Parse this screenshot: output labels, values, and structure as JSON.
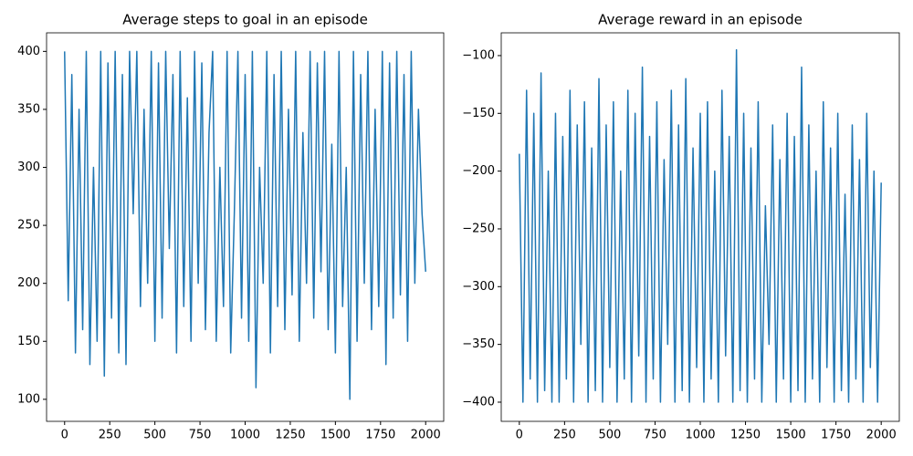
{
  "chart_data": [
    {
      "type": "line",
      "title": "Average steps to goal in an episode",
      "x": [
        0,
        20,
        40,
        60,
        80,
        100,
        120,
        140,
        160,
        180,
        200,
        220,
        240,
        260,
        280,
        300,
        320,
        340,
        360,
        380,
        400,
        420,
        440,
        460,
        480,
        500,
        520,
        540,
        560,
        580,
        600,
        620,
        640,
        660,
        680,
        700,
        720,
        740,
        760,
        780,
        800,
        820,
        840,
        860,
        880,
        900,
        920,
        940,
        960,
        980,
        1000,
        1020,
        1040,
        1060,
        1080,
        1100,
        1120,
        1140,
        1160,
        1180,
        1200,
        1220,
        1240,
        1260,
        1280,
        1300,
        1320,
        1340,
        1360,
        1380,
        1400,
        1420,
        1440,
        1460,
        1480,
        1500,
        1520,
        1540,
        1560,
        1580,
        1600,
        1620,
        1640,
        1660,
        1680,
        1700,
        1720,
        1740,
        1760,
        1780,
        1800,
        1820,
        1840,
        1860,
        1880,
        1900,
        1920,
        1940,
        1960,
        1980,
        2000
      ],
      "series": [
        {
          "color": "#1f77b4",
          "values": [
            400,
            185,
            380,
            140,
            350,
            160,
            400,
            130,
            300,
            150,
            400,
            120,
            390,
            170,
            400,
            140,
            380,
            130,
            400,
            260,
            400,
            180,
            350,
            200,
            400,
            150,
            390,
            170,
            400,
            230,
            380,
            140,
            400,
            180,
            360,
            150,
            400,
            200,
            390,
            160,
            330,
            400,
            150,
            300,
            180,
            400,
            140,
            260,
            400,
            170,
            380,
            150,
            400,
            110,
            300,
            200,
            400,
            140,
            380,
            180,
            400,
            160,
            350,
            190,
            400,
            150,
            330,
            200,
            400,
            170,
            390,
            210,
            400,
            160,
            320,
            140,
            400,
            180,
            300,
            100,
            400,
            150,
            380,
            200,
            400,
            160,
            350,
            180,
            400,
            130,
            390,
            170,
            400,
            190,
            380,
            150,
            400,
            200,
            350,
            260,
            210
          ]
        }
      ],
      "xlim": [
        -100,
        2100
      ],
      "ylim": [
        81,
        416
      ],
      "xticks": [
        0,
        250,
        500,
        750,
        1000,
        1250,
        1500,
        1750,
        2000
      ],
      "yticks": [
        100,
        150,
        200,
        250,
        300,
        350,
        400
      ]
    },
    {
      "type": "line",
      "title": "Average reward in an episode",
      "x": [
        0,
        20,
        40,
        60,
        80,
        100,
        120,
        140,
        160,
        180,
        200,
        220,
        240,
        260,
        280,
        300,
        320,
        340,
        360,
        380,
        400,
        420,
        440,
        460,
        480,
        500,
        520,
        540,
        560,
        580,
        600,
        620,
        640,
        660,
        680,
        700,
        720,
        740,
        760,
        780,
        800,
        820,
        840,
        860,
        880,
        900,
        920,
        940,
        960,
        980,
        1000,
        1020,
        1040,
        1060,
        1080,
        1100,
        1120,
        1140,
        1160,
        1180,
        1200,
        1220,
        1240,
        1260,
        1280,
        1300,
        1320,
        1340,
        1360,
        1380,
        1400,
        1420,
        1440,
        1460,
        1480,
        1500,
        1520,
        1540,
        1560,
        1580,
        1600,
        1620,
        1640,
        1660,
        1680,
        1700,
        1720,
        1740,
        1760,
        1780,
        1800,
        1820,
        1840,
        1860,
        1880,
        1900,
        1920,
        1940,
        1960,
        1980,
        2000
      ],
      "series": [
        {
          "color": "#1f77b4",
          "values": [
            -185,
            -400,
            -130,
            -380,
            -150,
            -400,
            -115,
            -390,
            -200,
            -400,
            -150,
            -400,
            -170,
            -380,
            -130,
            -400,
            -160,
            -350,
            -140,
            -400,
            -180,
            -390,
            -120,
            -400,
            -160,
            -370,
            -140,
            -400,
            -200,
            -380,
            -130,
            -400,
            -150,
            -360,
            -110,
            -400,
            -170,
            -380,
            -140,
            -400,
            -190,
            -350,
            -130,
            -400,
            -160,
            -390,
            -120,
            -400,
            -180,
            -370,
            -150,
            -400,
            -140,
            -380,
            -200,
            -400,
            -130,
            -360,
            -170,
            -400,
            -95,
            -390,
            -150,
            -400,
            -180,
            -380,
            -140,
            -400,
            -230,
            -350,
            -160,
            -400,
            -190,
            -380,
            -150,
            -400,
            -170,
            -390,
            -110,
            -400,
            -160,
            -380,
            -200,
            -400,
            -140,
            -370,
            -180,
            -400,
            -150,
            -390,
            -220,
            -400,
            -160,
            -380,
            -190,
            -400,
            -150,
            -370,
            -200,
            -400,
            -210
          ]
        }
      ],
      "xlim": [
        -100,
        2100
      ],
      "ylim": [
        -416.6,
        -80.3
      ],
      "xticks": [
        0,
        250,
        500,
        750,
        1000,
        1250,
        1500,
        1750,
        2000
      ],
      "yticks": [
        {
          "value": -400,
          "label": "−400"
        },
        {
          "value": -350,
          "label": "−350"
        },
        {
          "value": -300,
          "label": "−300"
        },
        {
          "value": -250,
          "label": "−250"
        },
        {
          "value": -200,
          "label": "−200"
        },
        {
          "value": -150,
          "label": "−150"
        },
        {
          "value": -100,
          "label": "−100"
        }
      ]
    }
  ]
}
